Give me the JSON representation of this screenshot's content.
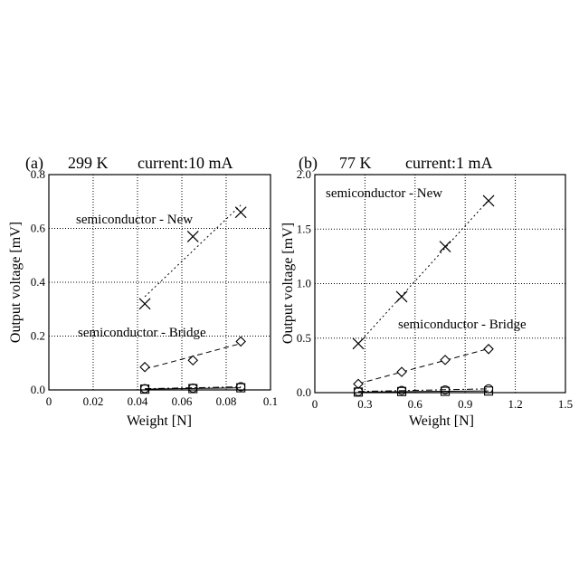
{
  "chart_data": [
    {
      "type": "scatter",
      "panel_label": "(a)",
      "temperature": "299 K",
      "current": "current:10 mA",
      "xlabel": "Weight [N]",
      "ylabel": "Output voltage [mV]",
      "xlim": [
        0,
        0.1
      ],
      "ylim": [
        0,
        0.8
      ],
      "xticks": [
        "0",
        "0.02",
        "0.04",
        "0.06",
        "0.08",
        "0.1"
      ],
      "yticks": [
        "0.0",
        "0.2",
        "0.4",
        "0.6",
        "0.8"
      ],
      "grid": true,
      "annotations": [
        "semiconductor - New",
        "semiconductor - Bridge"
      ],
      "series": [
        {
          "marker": "x",
          "line": "dotted",
          "x": [
            0.0433,
            0.065,
            0.0866
          ],
          "y": [
            0.32,
            0.57,
            0.66
          ]
        },
        {
          "marker": "diamond",
          "line": "dashed",
          "x": [
            0.0433,
            0.065,
            0.0866
          ],
          "y": [
            0.085,
            0.11,
            0.18
          ]
        },
        {
          "marker": "circle",
          "line": "dashdot",
          "x": [
            0.0433,
            0.065,
            0.0866
          ],
          "y": [
            0.005,
            0.007,
            0.012
          ]
        },
        {
          "marker": "square",
          "line": "solid",
          "x": [
            0.0433,
            0.065,
            0.0866
          ],
          "y": [
            0.003,
            0.005,
            0.008
          ]
        }
      ]
    },
    {
      "type": "scatter",
      "panel_label": "(b)",
      "temperature": "77 K",
      "current": "current:1 mA",
      "xlabel": "Weight [N]",
      "ylabel": "Output voltage [mV]",
      "xlim": [
        0,
        1.5
      ],
      "ylim": [
        0,
        2.0
      ],
      "xticks": [
        "0",
        "0.3",
        "0.6",
        "0.9",
        "1.2",
        "1.5"
      ],
      "yticks": [
        "0.0",
        "0.5",
        "1.0",
        "1.5",
        "2.0"
      ],
      "grid": true,
      "annotations": [
        "semiconductor - New",
        "semiconductor - Bridge"
      ],
      "series": [
        {
          "marker": "x",
          "line": "dotted",
          "x": [
            0.26,
            0.52,
            0.78,
            1.04
          ],
          "y": [
            0.45,
            0.88,
            1.34,
            1.76
          ]
        },
        {
          "marker": "diamond",
          "line": "dashed",
          "x": [
            0.26,
            0.52,
            0.78,
            1.04
          ],
          "y": [
            0.08,
            0.19,
            0.3,
            0.4
          ]
        },
        {
          "marker": "circle",
          "line": "dashdot",
          "x": [
            0.26,
            0.52,
            0.78,
            1.04
          ],
          "y": [
            0.01,
            0.02,
            0.025,
            0.035
          ]
        },
        {
          "marker": "square",
          "line": "solid",
          "x": [
            0.26,
            0.52,
            0.78,
            1.04
          ],
          "y": [
            0.005,
            0.01,
            0.012,
            0.015
          ]
        }
      ]
    }
  ]
}
